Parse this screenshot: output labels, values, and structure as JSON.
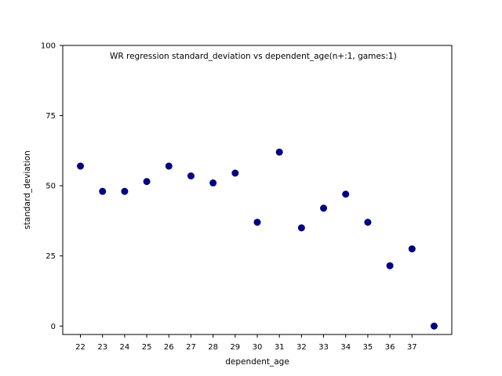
{
  "chart_data": {
    "type": "scatter",
    "title": "",
    "annotation": "WR regression standard_deviation vs dependent_age(n+:1, games:1)",
    "xlabel": "dependent_age",
    "ylabel": "standard_deviation",
    "x_ticks": [
      22,
      23,
      24,
      25,
      26,
      27,
      28,
      29,
      30,
      31,
      32,
      33,
      34,
      35,
      36,
      37
    ],
    "y_ticks": [
      0,
      25,
      50,
      75,
      100
    ],
    "xlim": [
      21.2,
      38.8
    ],
    "ylim": [
      -3,
      100
    ],
    "grid": false,
    "marker_color": "#000080",
    "points": [
      {
        "x": 22,
        "y": 57
      },
      {
        "x": 23,
        "y": 48
      },
      {
        "x": 24,
        "y": 48
      },
      {
        "x": 25,
        "y": 51.5
      },
      {
        "x": 26,
        "y": 57
      },
      {
        "x": 27,
        "y": 53.5
      },
      {
        "x": 28,
        "y": 51
      },
      {
        "x": 29,
        "y": 54.5
      },
      {
        "x": 30,
        "y": 37
      },
      {
        "x": 31,
        "y": 62
      },
      {
        "x": 32,
        "y": 35
      },
      {
        "x": 33,
        "y": 42
      },
      {
        "x": 34,
        "y": 47
      },
      {
        "x": 35,
        "y": 37
      },
      {
        "x": 36,
        "y": 21.5
      },
      {
        "x": 37,
        "y": 27.5
      },
      {
        "x": 38,
        "y": 0
      }
    ]
  }
}
